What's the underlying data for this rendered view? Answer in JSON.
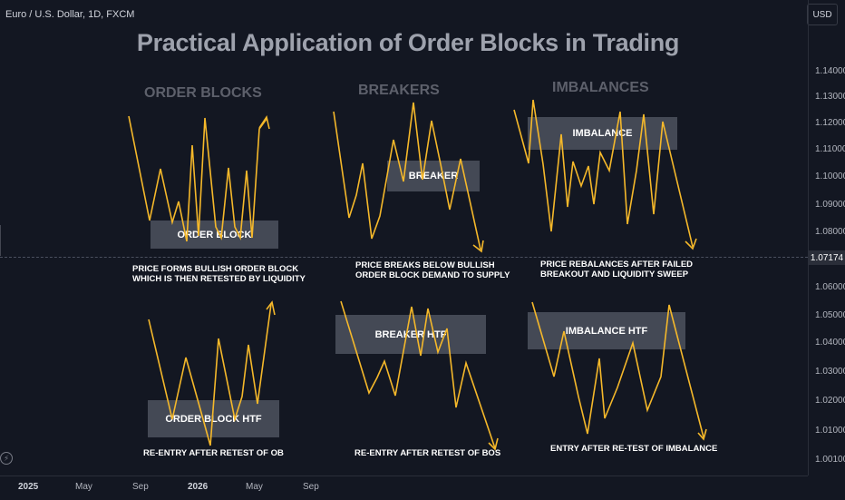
{
  "header": {
    "symbol": "Euro / U.S. Dollar, 1D, FXCM",
    "currency": "USD"
  },
  "title": "Practical Application of Order Blocks in Trading",
  "headings": {
    "order_blocks": "ORDER BLOCKS",
    "breakers": "BREAKERS",
    "imbalances": "IMBALANCES"
  },
  "boxes": {
    "order_block": "ORDER BLOCK",
    "breaker": "BREAKER",
    "imbalance": "IMBALANCE",
    "order_block_htf": "ORDER BLOCK HTF",
    "breaker_htf": "BREAKER HTF",
    "imbalance_htf": "IMBALANCE HTF"
  },
  "captions": {
    "ob_1": "PRICE FORMS BULLISH ORDER BLOCK",
    "ob_2": "WHICH IS THEN RETESTED BY LIQUIDITY",
    "br_1": "PRICE BREAKS BELOW BULLISH",
    "br_2": "ORDER BLOCK DEMAND TO SUPPLY",
    "im_1": "PRICE REBALANCES AFTER FAILED",
    "im_2": "BREAKOUT AND LIQUIDITY SWEEP",
    "ob_htf": "RE-ENTRY AFTER RETEST OF OB",
    "br_htf": "RE-ENTRY AFTER RETEST OF BOS",
    "im_htf": "ENTRY AFTER RE-TEST OF IMBALANCE"
  },
  "price_axis": {
    "ticks": [
      "1.14000",
      "1.13000",
      "1.12000",
      "1.11000",
      "1.10000",
      "1.09000",
      "1.08000",
      "1.06000",
      "1.05000",
      "1.04000",
      "1.03000",
      "1.02000",
      "1.01000",
      "1.00100"
    ],
    "current_price": "1.07174"
  },
  "time_axis": {
    "labels": [
      "2025",
      "May",
      "Sep",
      "2026",
      "May",
      "Sep"
    ]
  },
  "colors": {
    "background": "#131722",
    "line": "#f5b82a",
    "box": "#6e7380"
  },
  "icons": {
    "nav": "lightning-icon"
  }
}
